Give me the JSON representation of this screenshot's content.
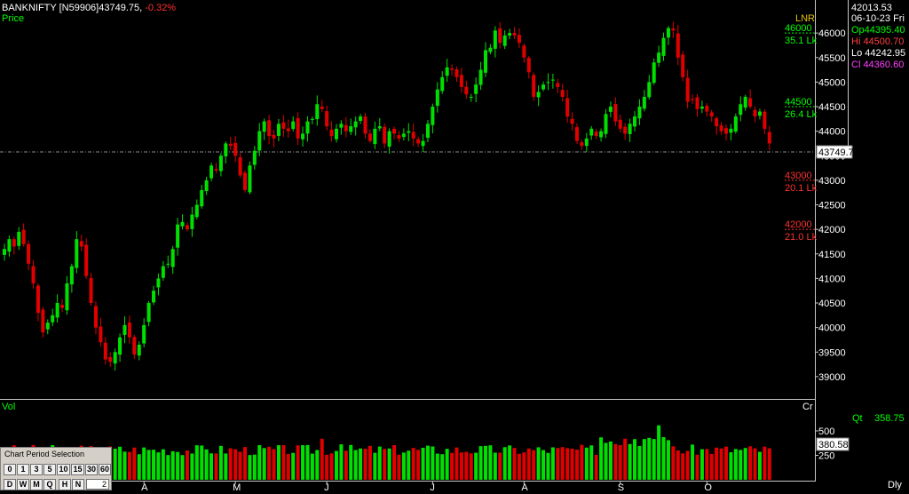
{
  "header": {
    "symbol": "BANKNIFTY [N59906]",
    "last": "43749.75,",
    "change": "-0.32%",
    "price_label": "Price",
    "scale_label": "LNR"
  },
  "info_panel": {
    "value": "42013.53",
    "date": "06-10-23 Fri",
    "open": "Op44395.40",
    "high": "Hi 44500.70",
    "low": "Lo 44242.95",
    "close": "Cl 44360.60"
  },
  "colors": {
    "up": "#00e000",
    "down": "#e00000",
    "grid_frame": "#c8c8c8",
    "axis_text": "#ffffff",
    "open_color": "#00ff00",
    "high_color": "#ff4040",
    "close_color": "#ff40ff",
    "level_up_color": "#00ff00",
    "level_down_color": "#ff3030",
    "scale_label_color": "#e0c000"
  },
  "volume_panel": {
    "label": "Vol",
    "unit": "Cr",
    "qty_label": "Qt",
    "qty_value": "358.75",
    "current_value": "380.58"
  },
  "period_selector": {
    "title": "Chart Period Selection",
    "row1": [
      "0",
      "1",
      "3",
      "5",
      "10",
      "15",
      "30",
      "60"
    ],
    "row2": [
      "D",
      "W",
      "M",
      "Q",
      "H",
      "N"
    ],
    "input_value": "2",
    "interval_label": "Dly"
  },
  "chart_data": {
    "type": "candlestick",
    "current_price": 43749.75,
    "current_price_label": "43749.7",
    "ylim": [
      38600,
      46600
    ],
    "y_ticks": [
      39000,
      39500,
      40000,
      40500,
      41000,
      41500,
      42000,
      42500,
      43000,
      43500,
      44000,
      44500,
      45000,
      45500,
      46000
    ],
    "x_month_labels": [
      "A",
      "M",
      "J",
      "J",
      "A",
      "S",
      "O"
    ],
    "month_start_index": [
      29,
      48,
      67,
      89,
      108,
      128,
      146
    ],
    "level_markers": [
      {
        "price": 46000,
        "price_label": "46000",
        "vol_label": "35.1 Lk",
        "direction": "up"
      },
      {
        "price": 44500,
        "price_label": "44500",
        "vol_label": "26.4 Lk",
        "direction": "up"
      },
      {
        "price": 43000,
        "price_label": "43000",
        "vol_label": "20.1 Lk",
        "direction": "down"
      },
      {
        "price": 42000,
        "price_label": "42000",
        "vol_label": "21.0 Lk",
        "direction": "down"
      }
    ],
    "volume_ticks": [
      250,
      500
    ],
    "volume_ylim": [
      0,
      800
    ],
    "close": [
      41600,
      41800,
      41650,
      41950,
      41700,
      41300,
      40900,
      40300,
      39900,
      40100,
      40250,
      40500,
      40400,
      40900,
      41250,
      41800,
      41650,
      41050,
      40500,
      40000,
      39700,
      39350,
      39300,
      39500,
      39800,
      40050,
      39800,
      39450,
      39650,
      40050,
      40500,
      40750,
      41000,
      41250,
      41300,
      41600,
      42100,
      42150,
      42000,
      42300,
      42500,
      42800,
      43000,
      43300,
      43200,
      43500,
      43750,
      43700,
      43500,
      43100,
      42800,
      43300,
      43600,
      44000,
      44200,
      43900,
      43850,
      44150,
      44050,
      44000,
      44200,
      43850,
      43950,
      44200,
      44250,
      44550,
      44450,
      44100,
      43900,
      44050,
      44150,
      44000,
      44100,
      44200,
      44300,
      43950,
      43800,
      44050,
      44100,
      43750,
      44000,
      43950,
      43850,
      43950,
      44000,
      43850,
      43750,
      43800,
      44150,
      44500,
      44850,
      45100,
      45300,
      45250,
      45100,
      44900,
      44750,
      44700,
      44950,
      45250,
      45650,
      45700,
      46050,
      45800,
      45950,
      46000,
      45950,
      45800,
      45500,
      45200,
      44700,
      44800,
      44950,
      45000,
      45050,
      44900,
      44700,
      44300,
      44150,
      43800,
      43700,
      43850,
      44050,
      43900,
      44000,
      44350,
      44500,
      44200,
      44050,
      43950,
      44150,
      44300,
      44500,
      44700,
      45000,
      45400,
      45600,
      45900,
      46100,
      46050,
      45500,
      45100,
      44600,
      44650,
      44450,
      44500,
      44400,
      44300,
      44100,
      44000,
      43950,
      44050,
      44300,
      44550,
      44700,
      44500,
      44300,
      44400,
      44050,
      43750
    ]
  }
}
